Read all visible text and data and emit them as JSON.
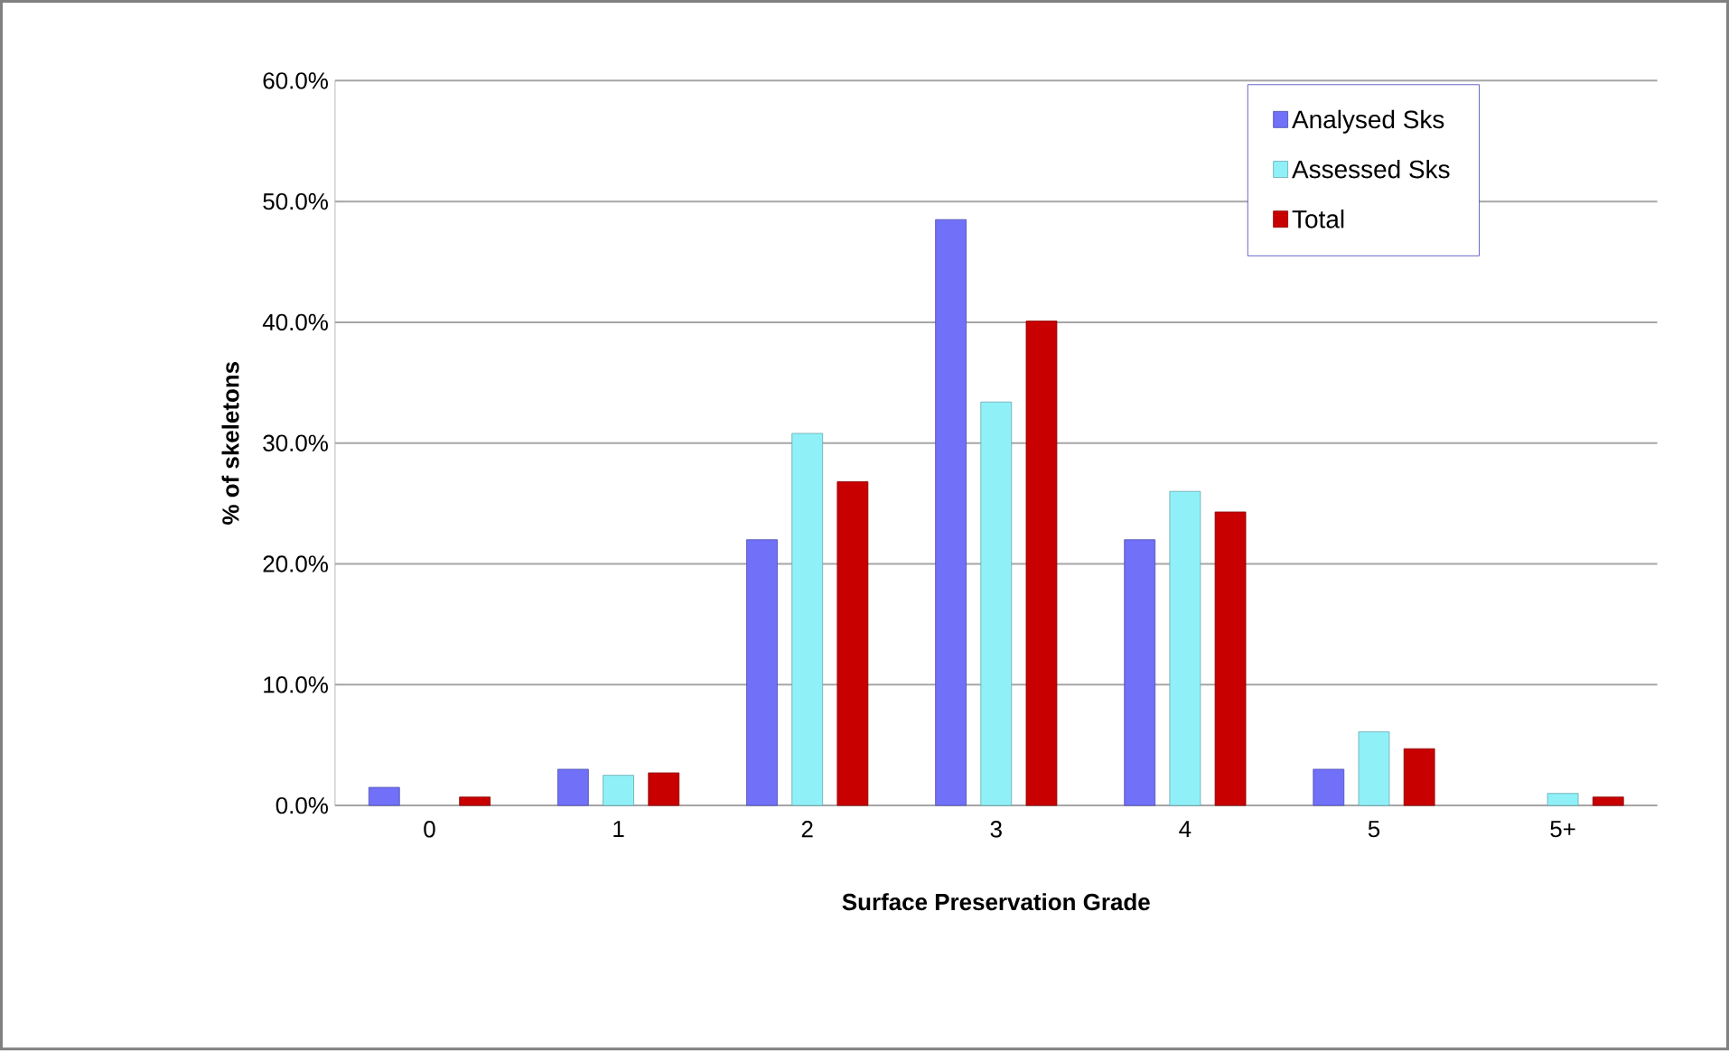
{
  "chart_data": {
    "type": "bar",
    "xlabel": "Surface Preservation Grade",
    "ylabel": "% of skeletons",
    "categories": [
      "0",
      "1",
      "2",
      "3",
      "4",
      "5",
      "5+"
    ],
    "series": [
      {
        "name": "Analysed Sks",
        "color": "#7070f8",
        "values": [
          1.5,
          3.0,
          22.0,
          48.5,
          22.0,
          3.0,
          null
        ]
      },
      {
        "name": "Assessed Sks",
        "color": "#90f0f8",
        "values": [
          null,
          2.5,
          30.8,
          33.4,
          26.0,
          6.1,
          1.0
        ]
      },
      {
        "name": "Total",
        "color": "#c80000",
        "values": [
          0.7,
          2.7,
          26.8,
          40.1,
          24.3,
          4.7,
          0.7
        ]
      }
    ],
    "ylim": [
      0,
      60
    ],
    "yticks": [
      {
        "value": 0,
        "label": "0.0%"
      },
      {
        "value": 10,
        "label": "10.0%"
      },
      {
        "value": 20,
        "label": "20.0%"
      },
      {
        "value": 30,
        "label": "30.0%"
      },
      {
        "value": 40,
        "label": "40.0%"
      },
      {
        "value": 50,
        "label": "50.0%"
      },
      {
        "value": 60,
        "label": "60.0%"
      }
    ],
    "grid": "y",
    "legend": "top right"
  }
}
